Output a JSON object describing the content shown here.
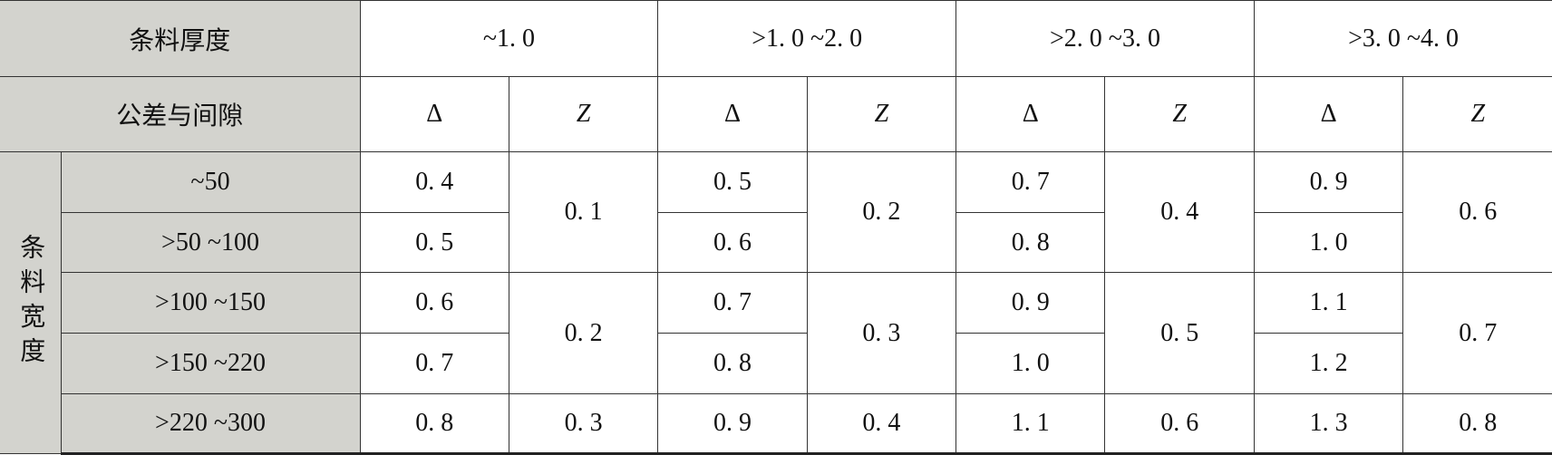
{
  "header": {
    "thickness_label": "条料厚度",
    "thickness_ranges": [
      "~1. 0",
      ">1. 0 ~2. 0",
      ">2. 0 ~3. 0",
      ">3. 0 ~4. 0"
    ],
    "tolerance_label": "公差与间隙",
    "column_symbols": [
      "Δ",
      "Z",
      "Δ",
      "Z",
      "Δ",
      "Z",
      "Δ",
      "Z"
    ]
  },
  "width_label": "条料宽度",
  "width_ranges": [
    "~50",
    ">50 ~100",
    ">100 ~150",
    ">150 ~220",
    ">220 ~300"
  ],
  "delta_rows": [
    [
      "0. 4",
      "0. 5",
      "0. 7",
      "0. 9"
    ],
    [
      "0. 5",
      "0. 6",
      "0. 8",
      "1. 0"
    ],
    [
      "0. 6",
      "0. 7",
      "0. 9",
      "1. 1"
    ],
    [
      "0. 7",
      "0. 8",
      "1. 0",
      "1. 2"
    ],
    [
      "0. 8",
      "0. 9",
      "1. 1",
      "1. 3"
    ]
  ],
  "z_groups": [
    [
      "0. 1",
      "0. 2",
      "0. 4",
      "0. 6"
    ],
    [
      "0. 2",
      "0. 3",
      "0. 5",
      "0. 7"
    ],
    [
      "0. 3",
      "0. 4",
      "0. 6",
      "0. 8"
    ]
  ]
}
